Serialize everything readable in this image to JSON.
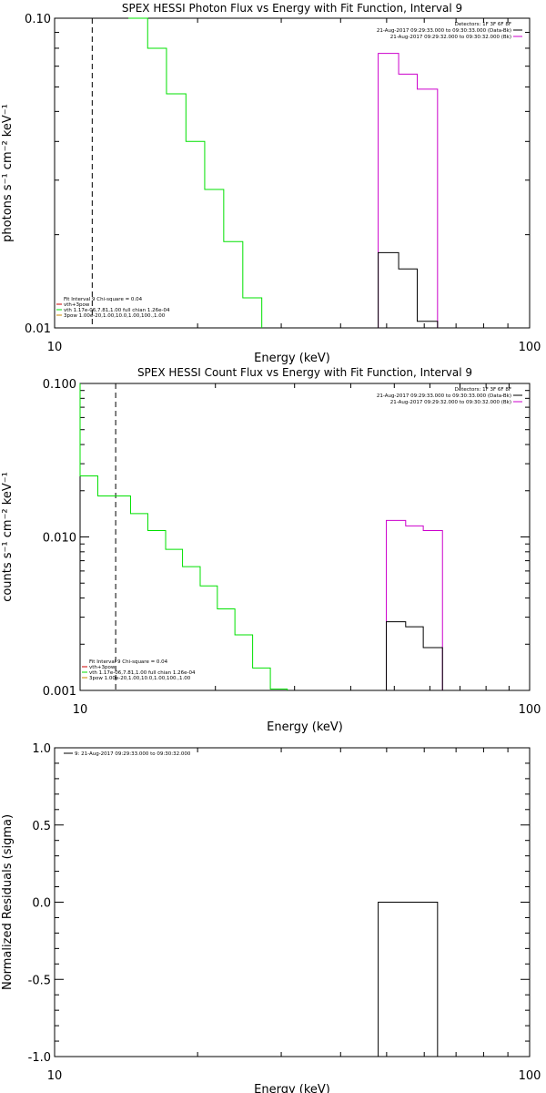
{
  "colors": {
    "frame": "#000000",
    "green": "#00e000",
    "magenta": "#cc00cc",
    "black": "#000000",
    "red": "#cc0000",
    "orange": "#cc8800"
  },
  "chart_data": [
    {
      "type": "line",
      "title": "SPEX HESSI Photon Flux vs Energy with Fit Function, Interval 9",
      "xlabel": "Energy (keV)",
      "ylabel": "photons s⁻¹ cm⁻² keV⁻¹",
      "xscale": "log",
      "yscale": "log",
      "xlim": [
        10,
        100
      ],
      "ylim": [
        0.01,
        0.1
      ],
      "xticks": [
        "10",
        "100"
      ],
      "yticks": [
        {
          "v": 0.1,
          "t": "0.10"
        },
        {
          "v": 0.01,
          "t": "0.01"
        }
      ],
      "vline": 12.0,
      "legend_top": [
        "Detectors: 1F 3F 6F 8F",
        "21-Aug-2017 09:29:33.000 to 09:30:33.000 (Data-Bk)",
        "21-Aug-2017 09:29:32.000 to 09:30:32.000 (Bk)"
      ],
      "legend_bottom": [
        "Fit Interval 9   Chi-square = 0.04",
        "vth+3pow",
        "vth 1.17e-06,7.81,1.00  full chian 1.26e-04",
        "3pow 1.00e-20,1.00,10.0,1.00,100.,1.00"
      ],
      "series": [
        {
          "name": "vth",
          "color": "green",
          "x": [
            14.3,
            15.7,
            17.2,
            18.9,
            20.7,
            22.7,
            24.9,
            27.3
          ],
          "y": [
            0.1,
            0.08,
            0.057,
            0.04,
            0.028,
            0.019,
            0.0125,
            0.0101
          ]
        },
        {
          "name": "(Bk)",
          "color": "magenta",
          "x": [
            48,
            53,
            58,
            64
          ],
          "y": [
            0.0101,
            0.077,
            0.066,
            0.059
          ]
        },
        {
          "name": "(Data-Bk)",
          "color": "black",
          "x": [
            48,
            53,
            58,
            64
          ],
          "y": [
            0.0101,
            0.0175,
            0.0155,
            0.0105
          ]
        }
      ]
    },
    {
      "type": "line",
      "title": "SPEX HESSI Count Flux vs Energy with Fit Function, Interval 9",
      "xlabel": "Energy (keV)",
      "ylabel": "counts s⁻¹ cm⁻² keV⁻¹",
      "xscale": "log",
      "yscale": "log",
      "xlim": [
        10,
        100
      ],
      "ylim": [
        0.001,
        0.1
      ],
      "xticks": [
        "10",
        "100"
      ],
      "yticks": [
        {
          "v": 0.1,
          "t": "0.100"
        },
        {
          "v": 0.01,
          "t": "0.010"
        },
        {
          "v": 0.001,
          "t": "0.001"
        }
      ],
      "vline": 12.0,
      "legend_top": [
        "Detectors: 1F 3F 6F 8F",
        "21-Aug-2017 09:29:33.000 to 09:30:33.000 (Data-Bk)",
        "21-Aug-2017 09:29:32.000 to 09:30:32.000 (Bk)"
      ],
      "legend_bottom": [
        "Fit Interval 9   Chi-square = 0.04",
        "vth+3pow",
        "vth 1.17e-06,7.81,1.00  full chian 1.26e-04",
        "3pow 1.00e-20,1.00,10.0,1.00,100.,1.00"
      ],
      "series": [
        {
          "name": "vth",
          "color": "green",
          "x": [
            10,
            10.95,
            11.85,
            12.95,
            14.15,
            15.5,
            16.9,
            18.5,
            20.2,
            22.1,
            24.2,
            26.5,
            28.9
          ],
          "y": [
            0.025,
            0.0185,
            0.0185,
            0.0142,
            0.011,
            0.0083,
            0.0064,
            0.0048,
            0.0034,
            0.0023,
            0.0014,
            0.00102,
            0.001
          ]
        },
        {
          "name": "(Bk)",
          "color": "magenta",
          "x": [
            48,
            53,
            58,
            64
          ],
          "y": [
            0.001,
            0.0128,
            0.0118,
            0.011
          ]
        },
        {
          "name": "(Data-Bk)",
          "color": "black",
          "x": [
            48,
            53,
            58,
            64
          ],
          "y": [
            0.001,
            0.0028,
            0.0026,
            0.0019
          ]
        }
      ]
    },
    {
      "type": "line",
      "title": "",
      "xlabel": "Energy (keV)",
      "ylabel": "Normalized Residuals (sigma)",
      "xscale": "log",
      "yscale": "linear",
      "xlim": [
        10,
        100
      ],
      "ylim": [
        -1.0,
        1.0
      ],
      "xticks": [
        "10",
        "100"
      ],
      "yticks": [
        {
          "v": 1.0,
          "t": "1.0"
        },
        {
          "v": 0.5,
          "t": "0.5"
        },
        {
          "v": 0.0,
          "t": "0.0"
        },
        {
          "v": -0.5,
          "t": "-0.5"
        },
        {
          "v": -1.0,
          "t": "-1.0"
        }
      ],
      "legend_top": [
        "9: 21-Aug-2017 09:29:33.000 to 09:30:32.000"
      ],
      "series": [
        {
          "name": "residual",
          "color": "black",
          "x": [
            48,
            64
          ],
          "y": [
            0.0,
            0.0
          ]
        }
      ]
    }
  ]
}
